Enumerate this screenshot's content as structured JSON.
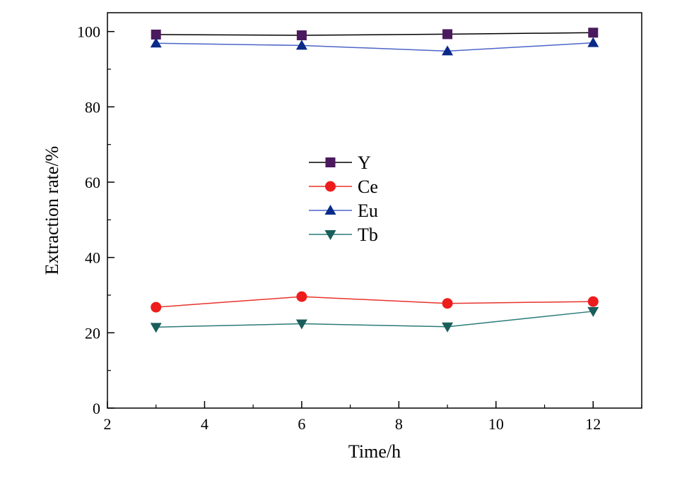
{
  "chart_data": {
    "type": "line",
    "xlabel": "Time/h",
    "ylabel": "Extraction rate/%",
    "xlim": [
      2,
      13
    ],
    "ylim": [
      0,
      105
    ],
    "xticks": [
      2,
      4,
      6,
      8,
      10,
      12
    ],
    "yticks": [
      0,
      20,
      40,
      60,
      80,
      100
    ],
    "x": [
      3,
      6,
      9,
      12
    ],
    "legend_position": "center",
    "series": [
      {
        "name": "Y",
        "values": [
          99.2,
          99.0,
          99.3,
          99.7
        ],
        "color": "#000000",
        "marker_color": "#4b1a5e",
        "marker": "square"
      },
      {
        "name": "Ce",
        "values": [
          26.8,
          29.6,
          27.8,
          28.3
        ],
        "color": "#e8322a",
        "marker_color": "#ee1c1c",
        "marker": "circle"
      },
      {
        "name": "Eu",
        "values": [
          96.9,
          96.3,
          94.8,
          97.0
        ],
        "color": "#4d64c8",
        "marker_color": "#0a2a8a",
        "marker": "triangle-up"
      },
      {
        "name": "Tb",
        "values": [
          21.5,
          22.4,
          21.6,
          25.7
        ],
        "color": "#2a7a78",
        "marker_color": "#1a5e5c",
        "marker": "triangle-down"
      }
    ]
  }
}
